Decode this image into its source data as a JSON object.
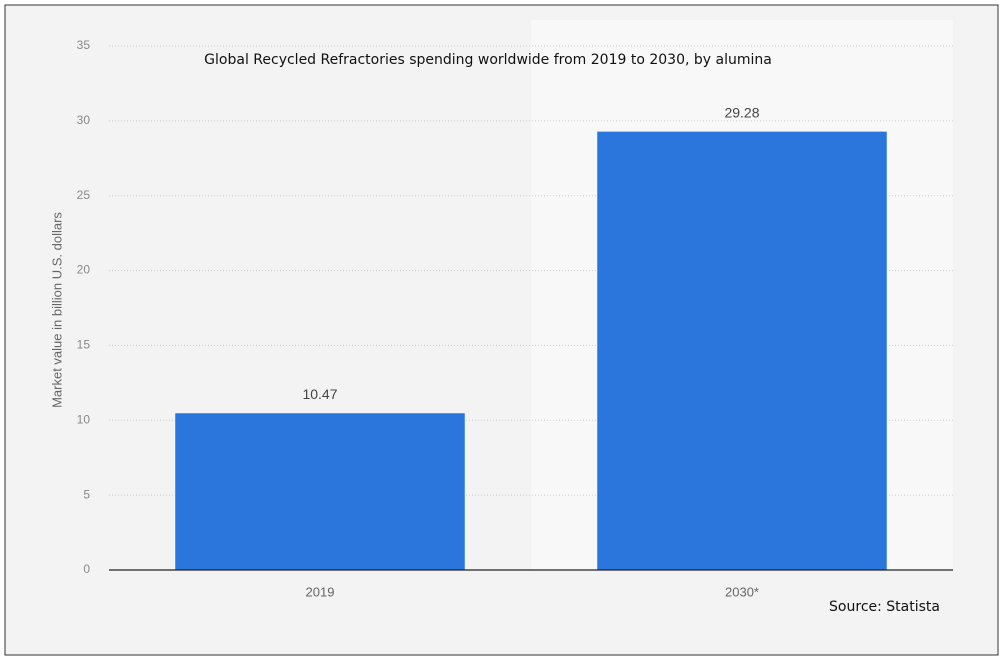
{
  "chart_data": {
    "type": "bar",
    "title": "Global Recycled Refractories spending worldwide from 2019 to 2030, by alumina",
    "y_label": "Market value in billion U.S. dollars",
    "source": "Source: Statista",
    "categories": [
      "2019",
      "2030*"
    ],
    "values": [
      10.47,
      29.28
    ],
    "color": "#2a76dd",
    "ylim": [
      0,
      35
    ],
    "yticks": [
      0,
      5,
      10,
      15,
      20,
      25,
      30,
      35
    ],
    "grid": true
  }
}
